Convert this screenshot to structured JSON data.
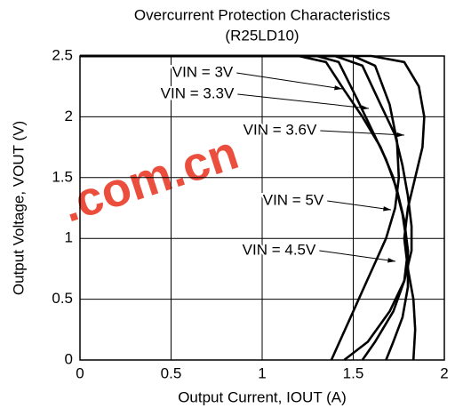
{
  "chart_data": {
    "type": "line",
    "title": "Overcurrent Protection Characteristics",
    "subtitle": "(R25LD10)",
    "x_label": "Output Current, IOUT (A)",
    "y_label": "Output Voltage, VOUT (V)",
    "watermark": ".com.cn",
    "xlim": [
      0,
      2
    ],
    "xticks": [
      0,
      0.5,
      1,
      1.5,
      2
    ],
    "ylim": [
      0,
      2.5
    ],
    "yticks": [
      0,
      0.5,
      1,
      1.5,
      2,
      2.5
    ],
    "grid": true,
    "series": [
      {
        "name": "VIN = 3V",
        "color": "#000000",
        "x": [
          0,
          1.2,
          1.35,
          1.45,
          1.55,
          1.65,
          1.72,
          1.77,
          1.8,
          1.8,
          1.77,
          1.72,
          1.68
        ],
        "values": [
          2.5,
          2.5,
          2.45,
          2.22,
          2.0,
          1.75,
          1.5,
          1.2,
          0.9,
          0.6,
          0.35,
          0.15,
          0
        ]
      },
      {
        "name": "VIN = 3.3V",
        "color": "#000000",
        "x": [
          0,
          1.3,
          1.42,
          1.52,
          1.6,
          1.68,
          1.74,
          1.78,
          1.8,
          1.78,
          1.72,
          1.62,
          1.55
        ],
        "values": [
          2.5,
          2.5,
          2.45,
          2.15,
          1.9,
          1.65,
          1.4,
          1.15,
          0.9,
          0.65,
          0.4,
          0.15,
          0
        ]
      },
      {
        "name": "VIN = 3.6V",
        "color": "#000000",
        "x": [
          0,
          1.4,
          1.55,
          1.65,
          1.73,
          1.77,
          1.8,
          1.82,
          1.82,
          1.78,
          1.7,
          1.58,
          1.45
        ],
        "values": [
          2.5,
          2.5,
          2.42,
          2.1,
          1.85,
          1.6,
          1.35,
          1.1,
          0.9,
          0.65,
          0.4,
          0.15,
          0
        ]
      },
      {
        "name": "VIN = 5V",
        "color": "#000000",
        "x": [
          0,
          1.5,
          1.62,
          1.7,
          1.74,
          1.75,
          1.73,
          1.68,
          1.62,
          1.56,
          1.5,
          1.44,
          1.38
        ],
        "values": [
          2.5,
          2.5,
          2.42,
          2.1,
          1.8,
          1.5,
          1.25,
          1.0,
          0.8,
          0.6,
          0.4,
          0.2,
          0
        ]
      },
      {
        "name": "VIN = 4.5V",
        "color": "#000000",
        "x": [
          0,
          1.6,
          1.78,
          1.86,
          1.89,
          1.88,
          1.84,
          1.8,
          1.78,
          1.8,
          1.83,
          1.84,
          1.83
        ],
        "values": [
          2.5,
          2.5,
          2.45,
          2.25,
          2.0,
          1.75,
          1.5,
          1.25,
          1.0,
          0.75,
          0.5,
          0.25,
          0
        ]
      }
    ]
  }
}
